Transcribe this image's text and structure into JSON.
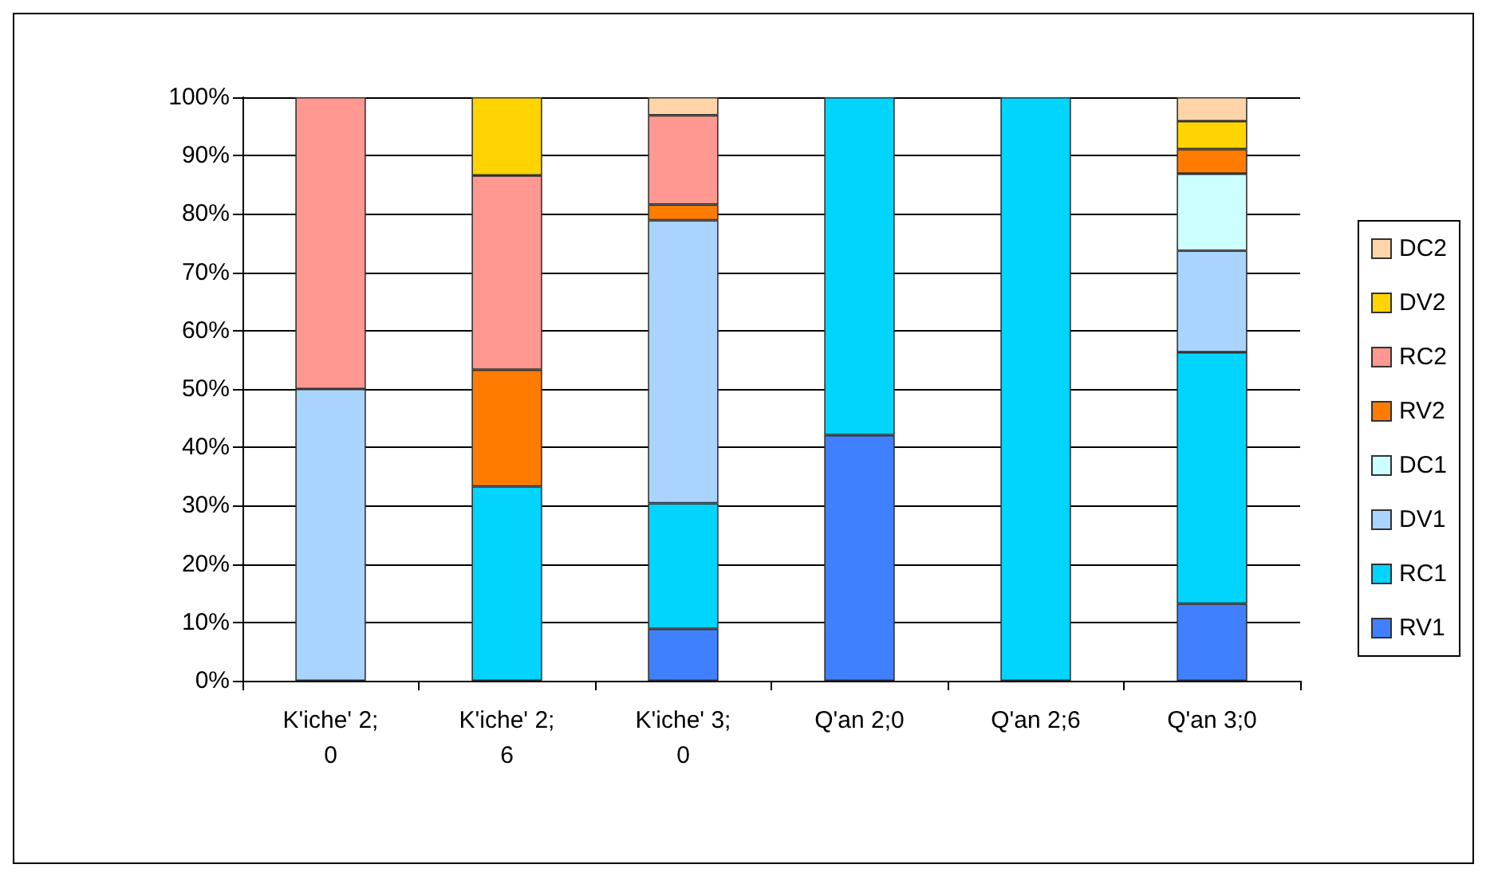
{
  "chart_data": {
    "type": "bar",
    "stacked": true,
    "categories": [
      "K'iche' 2;0",
      "K'iche' 2;6",
      "K'iche' 3;0",
      "Q'an 2;0",
      "Q'an 2;6",
      "Q'an 3;0"
    ],
    "series": [
      {
        "name": "RV1",
        "color": "#4080ff",
        "values": [
          null,
          null,
          8.9,
          42.1,
          null,
          13.2
        ]
      },
      {
        "name": "RC1",
        "color": "#00d4ff",
        "values": [
          null,
          33.3,
          21.5,
          57.9,
          100,
          43.1
        ]
      },
      {
        "name": "DV1",
        "color": "#a8d4ff",
        "values": [
          50,
          null,
          48.5,
          null,
          null,
          17.4
        ]
      },
      {
        "name": "DC1",
        "color": "#ccffff",
        "values": [
          null,
          null,
          null,
          null,
          null,
          13.2
        ]
      },
      {
        "name": "RV2",
        "color": "#ff7c00",
        "values": [
          null,
          20,
          2.7,
          null,
          null,
          4.2
        ]
      },
      {
        "name": "RC2",
        "color": "#ff9890",
        "values": [
          50,
          33.3,
          15.3,
          null,
          null,
          null
        ]
      },
      {
        "name": "DV2",
        "color": "#ffd400",
        "values": [
          null,
          13.4,
          null,
          null,
          null,
          4.8
        ]
      },
      {
        "name": "DC2",
        "color": "#ffd4a8",
        "values": [
          null,
          null,
          3.1,
          null,
          null,
          4.1
        ]
      }
    ],
    "ylim": [
      0,
      100
    ],
    "yticks": [
      {
        "value": 0,
        "label": "0%"
      },
      {
        "value": 10,
        "label": "10%"
      },
      {
        "value": 20,
        "label": "20%"
      },
      {
        "value": 30,
        "label": "30%"
      },
      {
        "value": 40,
        "label": "40%"
      },
      {
        "value": 50,
        "label": "50%"
      },
      {
        "value": 60,
        "label": "60%"
      },
      {
        "value": 70,
        "label": "70%"
      },
      {
        "value": 80,
        "label": "80%"
      },
      {
        "value": 90,
        "label": "90%"
      },
      {
        "value": 100,
        "label": "100%"
      }
    ],
    "grid": "y",
    "legend": "right"
  }
}
